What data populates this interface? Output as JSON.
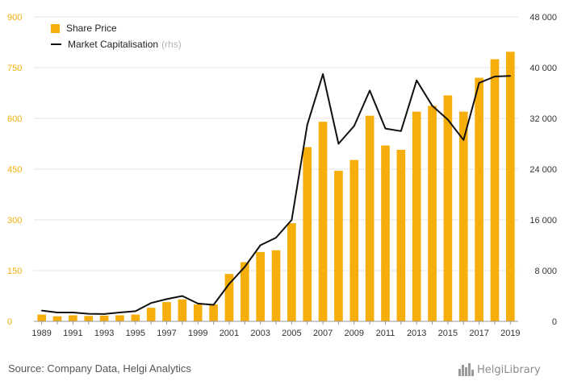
{
  "chart_data": {
    "type": "bar",
    "categories": [
      "1989",
      "1990",
      "1991",
      "1992",
      "1993",
      "1994",
      "1995",
      "1996",
      "1997",
      "1998",
      "1999",
      "2000",
      "2001",
      "2002",
      "2003",
      "2004",
      "2005",
      "2006",
      "2007",
      "2008",
      "2009",
      "2010",
      "2011",
      "2012",
      "2013",
      "2014",
      "2015",
      "2016",
      "2017",
      "2018",
      "2019"
    ],
    "x_tick_labels": [
      "1989",
      "1991",
      "1993",
      "1995",
      "1997",
      "1999",
      "2001",
      "2003",
      "2005",
      "2007",
      "2009",
      "2011",
      "2013",
      "2015",
      "2017",
      "2019"
    ],
    "series": [
      {
        "name": "Share Price",
        "type": "bar",
        "axis": "left",
        "color": "#F5AE0B",
        "values": [
          20,
          15,
          18,
          16,
          17,
          18,
          20,
          40,
          57,
          65,
          50,
          50,
          140,
          175,
          205,
          210,
          290,
          515,
          590,
          445,
          477,
          608,
          520,
          507,
          620,
          637,
          668,
          620,
          720,
          775,
          797
        ]
      },
      {
        "name": "Market Capitalisation",
        "name_suffix": "(rhs)",
        "type": "line",
        "axis": "right",
        "color": "#111111",
        "values": [
          1700,
          1400,
          1400,
          1200,
          1150,
          1400,
          1600,
          2900,
          3500,
          4000,
          2800,
          2600,
          5900,
          8600,
          12000,
          13200,
          16000,
          31000,
          39000,
          28000,
          30800,
          36400,
          30400,
          30000,
          38000,
          34000,
          31800,
          28600,
          37600,
          38600,
          38700
        ]
      }
    ],
    "y_left": {
      "ylim": [
        0,
        900
      ],
      "ticks": [
        "0",
        "150",
        "300",
        "450",
        "600",
        "750",
        "900"
      ],
      "tick_color": "#F5AE0B"
    },
    "y_right": {
      "ylim": [
        0,
        48000
      ],
      "ticks": [
        "0",
        "8 000",
        "16 000",
        "24 000",
        "32 000",
        "40 000",
        "48 000"
      ]
    },
    "grid": true,
    "legend_position": "top-left",
    "source_text": "Source: Company Data, Helgi Analytics",
    "logo_text": "HelgiLibrary"
  }
}
